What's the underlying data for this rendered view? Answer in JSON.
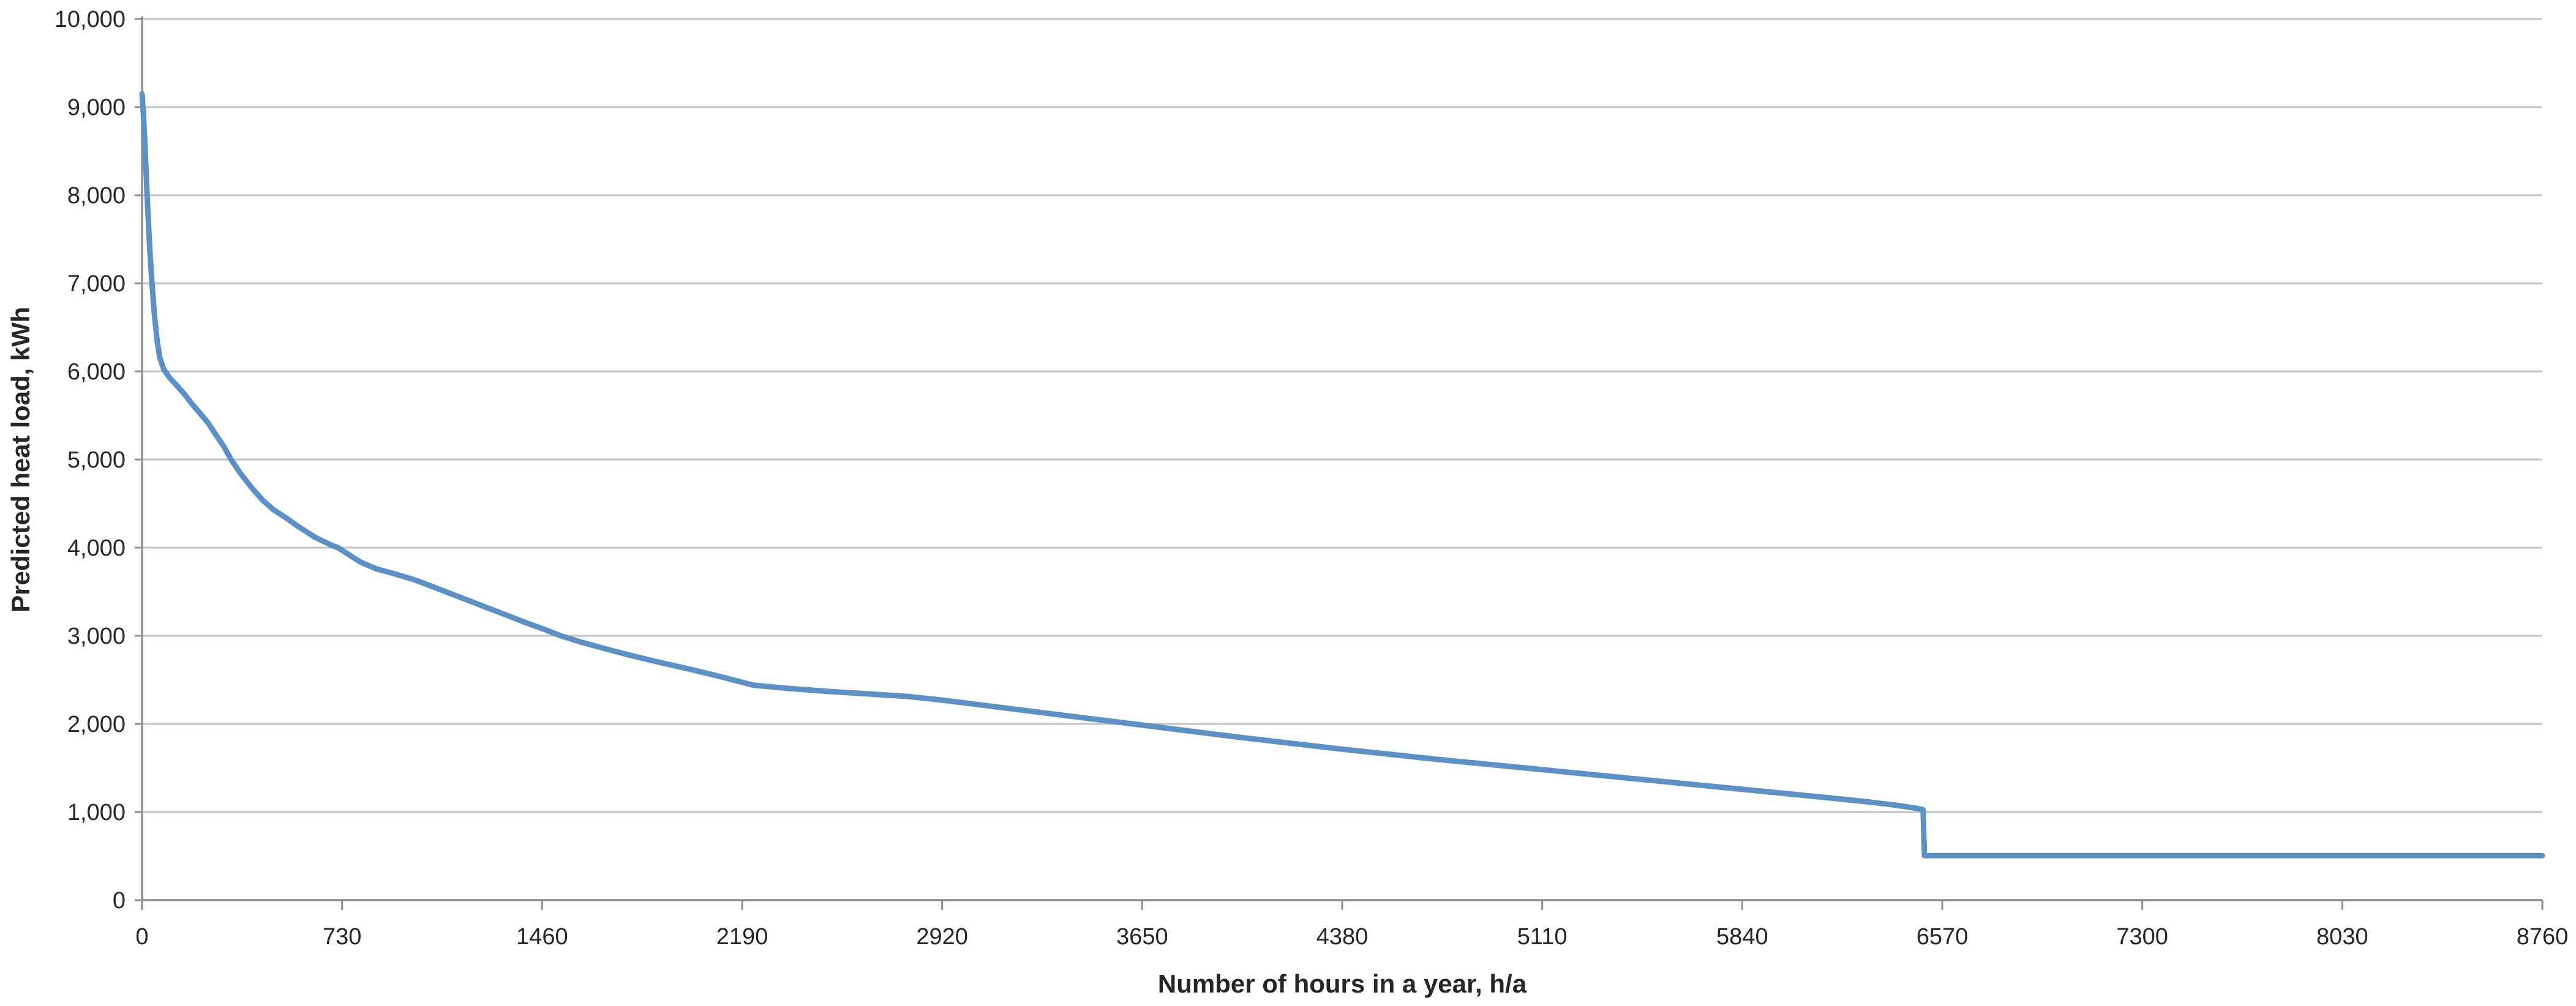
{
  "chart_data": {
    "type": "line",
    "title": "",
    "xlabel": "Number of hours in a year, h/a",
    "ylabel": "Predicted heat load, kWh",
    "xlim": [
      0,
      8760
    ],
    "ylim": [
      0,
      10000
    ],
    "x_ticks": [
      0,
      730,
      1460,
      2190,
      2920,
      3650,
      4380,
      5110,
      5840,
      6570,
      7300,
      8030,
      8760
    ],
    "x_tick_labels": [
      "0",
      "730",
      "1460",
      "2190",
      "2920",
      "3650",
      "4380",
      "5110",
      "5840",
      "6570",
      "7300",
      "8030",
      "8760"
    ],
    "y_ticks": [
      0,
      1000,
      2000,
      3000,
      4000,
      5000,
      6000,
      7000,
      8000,
      9000,
      10000
    ],
    "y_tick_labels": [
      "0",
      "1,000",
      "2,000",
      "3,000",
      "4,000",
      "5,000",
      "6,000",
      "7,000",
      "8,000",
      "9,000",
      "10,000"
    ],
    "grid": "horizontal",
    "legend": "none",
    "colors": {
      "line": "#5C91C6",
      "gridline": "#C2C2C2",
      "axis": "#8E8E8E",
      "text": "#262626",
      "background": "#FFFFFF"
    },
    "series": [
      {
        "name": "Predicted heat load",
        "points": [
          [
            0,
            9150
          ],
          [
            5,
            8920
          ],
          [
            10,
            8600
          ],
          [
            15,
            8250
          ],
          [
            20,
            7900
          ],
          [
            28,
            7400
          ],
          [
            35,
            7050
          ],
          [
            45,
            6650
          ],
          [
            55,
            6350
          ],
          [
            65,
            6150
          ],
          [
            80,
            6020
          ],
          [
            100,
            5930
          ],
          [
            130,
            5830
          ],
          [
            155,
            5740
          ],
          [
            180,
            5640
          ],
          [
            210,
            5530
          ],
          [
            240,
            5420
          ],
          [
            270,
            5280
          ],
          [
            300,
            5140
          ],
          [
            325,
            5000
          ],
          [
            360,
            4840
          ],
          [
            400,
            4680
          ],
          [
            440,
            4540
          ],
          [
            480,
            4430
          ],
          [
            520,
            4350
          ],
          [
            570,
            4240
          ],
          [
            630,
            4120
          ],
          [
            690,
            4030
          ],
          [
            715,
            4000
          ],
          [
            755,
            3920
          ],
          [
            795,
            3840
          ],
          [
            855,
            3760
          ],
          [
            925,
            3700
          ],
          [
            1000,
            3630
          ],
          [
            1100,
            3510
          ],
          [
            1200,
            3390
          ],
          [
            1300,
            3270
          ],
          [
            1400,
            3150
          ],
          [
            1470,
            3070
          ],
          [
            1528,
            3000
          ],
          [
            1600,
            2930
          ],
          [
            1700,
            2845
          ],
          [
            1774,
            2785
          ],
          [
            1880,
            2705
          ],
          [
            2000,
            2620
          ],
          [
            2120,
            2530
          ],
          [
            2230,
            2440
          ],
          [
            2350,
            2405
          ],
          [
            2500,
            2370
          ],
          [
            2650,
            2340
          ],
          [
            2800,
            2310
          ],
          [
            2920,
            2270
          ],
          [
            3100,
            2200
          ],
          [
            3280,
            2130
          ],
          [
            3460,
            2060
          ],
          [
            3640,
            1990
          ],
          [
            3820,
            1920
          ],
          [
            4000,
            1850
          ],
          [
            4180,
            1785
          ],
          [
            4360,
            1720
          ],
          [
            4540,
            1660
          ],
          [
            4720,
            1600
          ],
          [
            4900,
            1545
          ],
          [
            5080,
            1490
          ],
          [
            5260,
            1435
          ],
          [
            5440,
            1380
          ],
          [
            5620,
            1325
          ],
          [
            5800,
            1270
          ],
          [
            5980,
            1215
          ],
          [
            6160,
            1160
          ],
          [
            6300,
            1115
          ],
          [
            6400,
            1078
          ],
          [
            6480,
            1040
          ],
          [
            6500,
            1025
          ],
          [
            6505,
            505
          ],
          [
            8760,
            505
          ]
        ]
      }
    ]
  }
}
